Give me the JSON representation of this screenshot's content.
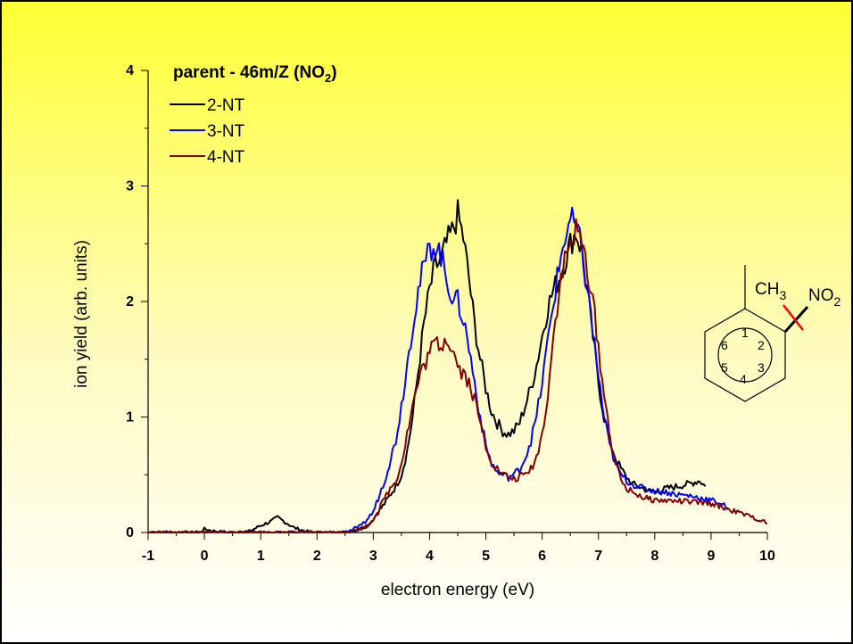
{
  "chart_data": {
    "type": "line",
    "title": "parent - 46m/Z (NO",
    "title_sub": "2",
    "title_close": ")",
    "xlabel": "electron energy (eV)",
    "ylabel": "ion yield (arb. units)",
    "xlim": [
      -1,
      10
    ],
    "ylim": [
      0,
      4
    ],
    "x_ticks": [
      "-1",
      "0",
      "1",
      "2",
      "3",
      "4",
      "5",
      "6",
      "7",
      "8",
      "9",
      "10"
    ],
    "y_ticks": [
      "0",
      "1",
      "2",
      "3",
      "4"
    ],
    "grid": false,
    "legend_position": "top-left",
    "background": "yellow-to-white gradient (top to bottom)",
    "series": [
      {
        "name": "2-NT",
        "color": "#000000",
        "points": [
          [
            -1,
            0
          ],
          [
            -0.5,
            0
          ],
          [
            -0.1,
            0
          ],
          [
            0,
            0.03
          ],
          [
            0.2,
            0.01
          ],
          [
            0.5,
            0
          ],
          [
            0.8,
            0.01
          ],
          [
            1.0,
            0.06
          ],
          [
            1.2,
            0.1
          ],
          [
            1.3,
            0.13
          ],
          [
            1.4,
            0.1
          ],
          [
            1.6,
            0.04
          ],
          [
            1.8,
            0.01
          ],
          [
            2.0,
            0
          ],
          [
            2.5,
            0
          ],
          [
            2.7,
            0.02
          ],
          [
            2.9,
            0.06
          ],
          [
            3.0,
            0.12
          ],
          [
            3.2,
            0.25
          ],
          [
            3.4,
            0.4
          ],
          [
            3.5,
            0.5
          ],
          [
            3.6,
            0.7
          ],
          [
            3.7,
            1.0
          ],
          [
            3.8,
            1.4
          ],
          [
            3.9,
            1.8
          ],
          [
            4.0,
            2.1
          ],
          [
            4.1,
            2.3
          ],
          [
            4.2,
            2.35
          ],
          [
            4.3,
            2.5
          ],
          [
            4.4,
            2.6
          ],
          [
            4.5,
            2.75
          ],
          [
            4.6,
            2.55
          ],
          [
            4.7,
            2.2
          ],
          [
            4.8,
            1.8
          ],
          [
            4.9,
            1.5
          ],
          [
            5.0,
            1.25
          ],
          [
            5.1,
            1.05
          ],
          [
            5.2,
            0.95
          ],
          [
            5.3,
            0.88
          ],
          [
            5.4,
            0.85
          ],
          [
            5.5,
            0.88
          ],
          [
            5.6,
            0.95
          ],
          [
            5.7,
            1.1
          ],
          [
            5.8,
            1.25
          ],
          [
            5.9,
            1.45
          ],
          [
            6.0,
            1.7
          ],
          [
            6.1,
            1.95
          ],
          [
            6.2,
            2.1
          ],
          [
            6.3,
            2.2
          ],
          [
            6.4,
            2.35
          ],
          [
            6.5,
            2.5
          ],
          [
            6.6,
            2.6
          ],
          [
            6.7,
            2.45
          ],
          [
            6.8,
            2.1
          ],
          [
            6.9,
            1.7
          ],
          [
            7.0,
            1.3
          ],
          [
            7.1,
            1.0
          ],
          [
            7.2,
            0.8
          ],
          [
            7.3,
            0.65
          ],
          [
            7.4,
            0.55
          ],
          [
            7.5,
            0.48
          ],
          [
            7.6,
            0.42
          ],
          [
            7.7,
            0.4
          ],
          [
            7.8,
            0.38
          ],
          [
            7.9,
            0.36
          ],
          [
            8.0,
            0.35
          ],
          [
            8.2,
            0.38
          ],
          [
            8.4,
            0.4
          ],
          [
            8.6,
            0.42
          ],
          [
            8.8,
            0.45
          ],
          [
            8.9,
            0.4
          ]
        ]
      },
      {
        "name": "3-NT",
        "color": "#0000ff",
        "points": [
          [
            -1,
            0
          ],
          [
            0,
            0
          ],
          [
            0.5,
            0
          ],
          [
            1.0,
            0
          ],
          [
            1.5,
            0
          ],
          [
            2.0,
            0
          ],
          [
            2.4,
            0
          ],
          [
            2.6,
            0.02
          ],
          [
            2.8,
            0.06
          ],
          [
            3.0,
            0.18
          ],
          [
            3.2,
            0.45
          ],
          [
            3.4,
            0.8
          ],
          [
            3.5,
            1.1
          ],
          [
            3.6,
            1.45
          ],
          [
            3.7,
            1.8
          ],
          [
            3.8,
            2.1
          ],
          [
            3.9,
            2.3
          ],
          [
            4.0,
            2.45
          ],
          [
            4.1,
            2.5
          ],
          [
            4.2,
            2.4
          ],
          [
            4.3,
            2.2
          ],
          [
            4.4,
            2.05
          ],
          [
            4.5,
            2.0
          ],
          [
            4.6,
            1.85
          ],
          [
            4.7,
            1.6
          ],
          [
            4.8,
            1.3
          ],
          [
            4.9,
            1.0
          ],
          [
            5.0,
            0.75
          ],
          [
            5.1,
            0.6
          ],
          [
            5.2,
            0.52
          ],
          [
            5.3,
            0.5
          ],
          [
            5.4,
            0.48
          ],
          [
            5.5,
            0.5
          ],
          [
            5.6,
            0.55
          ],
          [
            5.7,
            0.65
          ],
          [
            5.8,
            0.8
          ],
          [
            5.9,
            1.0
          ],
          [
            6.0,
            1.3
          ],
          [
            6.1,
            1.65
          ],
          [
            6.2,
            2.0
          ],
          [
            6.3,
            2.3
          ],
          [
            6.4,
            2.55
          ],
          [
            6.5,
            2.7
          ],
          [
            6.6,
            2.65
          ],
          [
            6.7,
            2.45
          ],
          [
            6.8,
            2.1
          ],
          [
            6.9,
            1.75
          ],
          [
            7.0,
            1.35
          ],
          [
            7.1,
            1.0
          ],
          [
            7.2,
            0.75
          ],
          [
            7.3,
            0.6
          ],
          [
            7.4,
            0.5
          ],
          [
            7.5,
            0.45
          ],
          [
            7.6,
            0.42
          ],
          [
            7.7,
            0.4
          ],
          [
            7.8,
            0.38
          ],
          [
            8.0,
            0.36
          ],
          [
            8.2,
            0.35
          ],
          [
            8.4,
            0.33
          ],
          [
            8.6,
            0.32
          ],
          [
            8.8,
            0.3
          ],
          [
            9.0,
            0.28
          ],
          [
            9.2,
            0.25
          ],
          [
            9.3,
            0.2
          ]
        ]
      },
      {
        "name": "4-NT",
        "color": "#800000",
        "points": [
          [
            -1,
            0
          ],
          [
            0,
            0
          ],
          [
            0.5,
            0
          ],
          [
            1.0,
            0
          ],
          [
            1.5,
            0
          ],
          [
            2.0,
            0
          ],
          [
            2.5,
            0
          ],
          [
            2.7,
            0.02
          ],
          [
            2.9,
            0.06
          ],
          [
            3.0,
            0.12
          ],
          [
            3.1,
            0.2
          ],
          [
            3.2,
            0.3
          ],
          [
            3.3,
            0.38
          ],
          [
            3.4,
            0.45
          ],
          [
            3.5,
            0.6
          ],
          [
            3.6,
            0.85
          ],
          [
            3.7,
            1.1
          ],
          [
            3.8,
            1.3
          ],
          [
            3.9,
            1.45
          ],
          [
            4.0,
            1.55
          ],
          [
            4.1,
            1.65
          ],
          [
            4.2,
            1.62
          ],
          [
            4.3,
            1.7
          ],
          [
            4.4,
            1.6
          ],
          [
            4.5,
            1.45
          ],
          [
            4.6,
            1.38
          ],
          [
            4.7,
            1.3
          ],
          [
            4.8,
            1.15
          ],
          [
            4.9,
            0.95
          ],
          [
            5.0,
            0.75
          ],
          [
            5.1,
            0.62
          ],
          [
            5.2,
            0.55
          ],
          [
            5.3,
            0.5
          ],
          [
            5.4,
            0.48
          ],
          [
            5.5,
            0.46
          ],
          [
            5.6,
            0.48
          ],
          [
            5.7,
            0.5
          ],
          [
            5.8,
            0.55
          ],
          [
            5.9,
            0.65
          ],
          [
            6.0,
            0.85
          ],
          [
            6.1,
            1.2
          ],
          [
            6.2,
            1.7
          ],
          [
            6.3,
            2.1
          ],
          [
            6.4,
            2.35
          ],
          [
            6.5,
            2.5
          ],
          [
            6.6,
            2.6
          ],
          [
            6.7,
            2.5
          ],
          [
            6.8,
            2.3
          ],
          [
            6.9,
            2.0
          ],
          [
            7.0,
            1.6
          ],
          [
            7.1,
            1.2
          ],
          [
            7.2,
            0.85
          ],
          [
            7.3,
            0.6
          ],
          [
            7.4,
            0.45
          ],
          [
            7.5,
            0.38
          ],
          [
            7.6,
            0.35
          ],
          [
            7.7,
            0.33
          ],
          [
            7.8,
            0.3
          ],
          [
            8.0,
            0.28
          ],
          [
            8.5,
            0.27
          ],
          [
            9.0,
            0.25
          ],
          [
            9.2,
            0.22
          ],
          [
            9.5,
            0.17
          ],
          [
            9.8,
            0.12
          ],
          [
            10.0,
            0.08
          ]
        ]
      }
    ]
  },
  "molecule": {
    "substituent_top": "CH",
    "substituent_top_sub": "3",
    "substituent_right": "NO",
    "substituent_right_sub": "2",
    "ring_numbers": [
      "1",
      "2",
      "3",
      "4",
      "5",
      "6"
    ],
    "bond_cut_color": "#ff0000"
  }
}
